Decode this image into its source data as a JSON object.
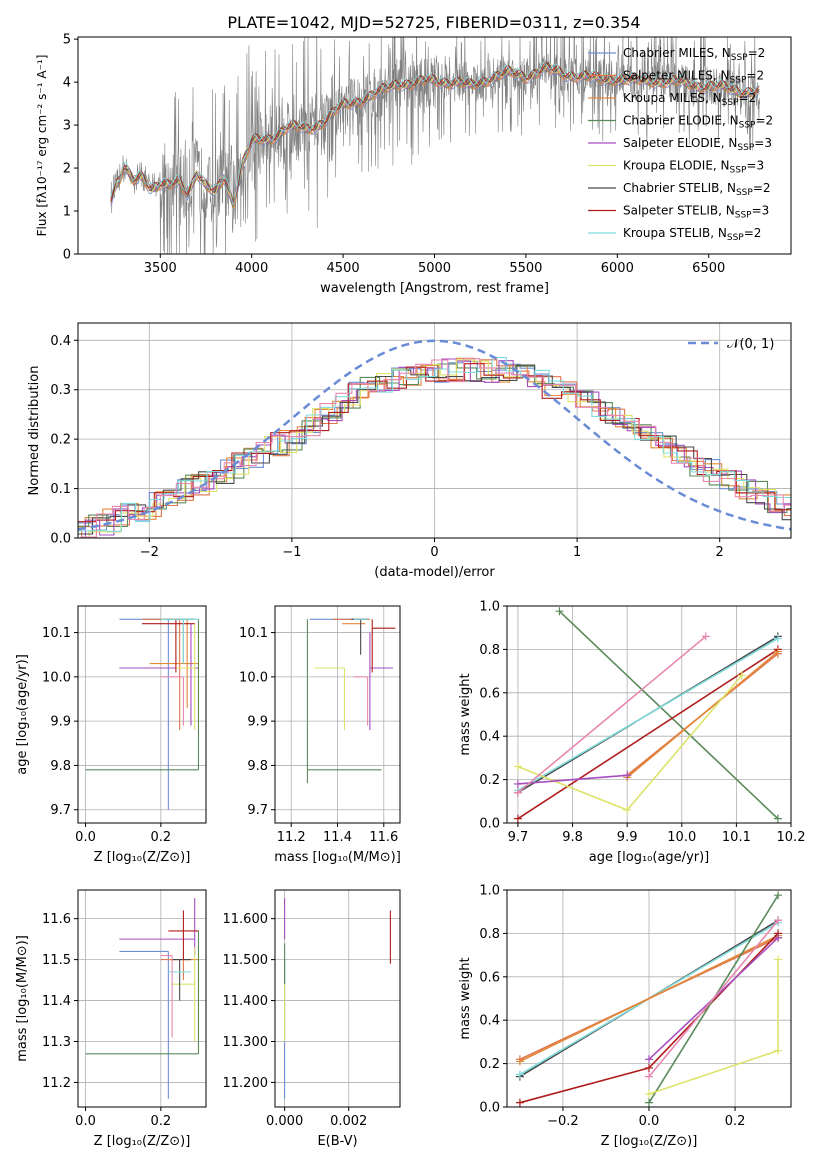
{
  "title": "PLATE=1042, MJD=52725, FIBERID=0311, z=0.354",
  "colors": {
    "chabrier_miles": "#6e8fd8",
    "salpeter_miles": "#e0764e",
    "kroupa_miles": "#e3883a",
    "chabrier_elodie": "#5a8a5a",
    "salpeter_elodie": "#a64ec0",
    "kroupa_elodie": "#dde36a",
    "chabrier_stelib": "#4a4a4a",
    "salpeter_stelib": "#b01c1c",
    "kroupa_stelib": "#7fdcdc",
    "pink": "#e888b0",
    "observed": "#808080",
    "normal_curve": "#6a8cd6"
  },
  "legend": [
    {
      "imf": "Chabrier MILES",
      "nssp": "=2",
      "key": "chabrier_miles"
    },
    {
      "imf": "Salpeter MILES",
      "nssp": "=2",
      "key": "salpeter_miles"
    },
    {
      "imf": "Kroupa MILES",
      "nssp": "=2",
      "key": "kroupa_miles"
    },
    {
      "imf": "Chabrier ELODIE",
      "nssp": "=2",
      "key": "chabrier_elodie"
    },
    {
      "imf": "Salpeter ELODIE",
      "nssp": "=3",
      "key": "salpeter_elodie"
    },
    {
      "imf": "Kroupa ELODIE",
      "nssp": "=3",
      "key": "kroupa_elodie"
    },
    {
      "imf": "Chabrier STELIB",
      "nssp": "=2",
      "key": "chabrier_stelib"
    },
    {
      "imf": "Salpeter STELIB",
      "nssp": "=3",
      "key": "salpeter_stelib"
    },
    {
      "imf": "Kroupa STELIB",
      "nssp": "=2",
      "key": "kroupa_stelib"
    }
  ],
  "nssp_prefix": "N",
  "nssp_sub": "SSP",
  "chart_data": [
    {
      "id": "spectrum",
      "type": "line",
      "xlabel": "wavelength [Angstrom, rest frame]",
      "ylabel": "Flux [fλ10⁻¹⁷ erg cm⁻² s⁻¹ A⁻¹]",
      "xlim": [
        3050,
        6950
      ],
      "ylim": [
        0,
        5.05
      ],
      "xticks": [
        3500,
        4000,
        4500,
        5000,
        5500,
        6000,
        6500
      ],
      "yticks": [
        0,
        1,
        2,
        3,
        4,
        5
      ],
      "model_continuum": {
        "x": [
          3230,
          3260,
          3280,
          3300,
          3350,
          3400,
          3450,
          3500,
          3550,
          3600,
          3650,
          3700,
          3750,
          3800,
          3850,
          3900,
          3950,
          4000,
          4100,
          4200,
          4300,
          4400,
          4500,
          4600,
          4700,
          4800,
          4900,
          5000,
          5100,
          5200,
          5300,
          5400,
          5500,
          5600,
          5700,
          5800,
          5900,
          6000,
          6100,
          6200,
          6300,
          6400,
          6500,
          6600,
          6700,
          6780
        ],
        "y": [
          1.3,
          1.6,
          1.7,
          2.0,
          1.7,
          1.85,
          1.55,
          1.6,
          1.55,
          1.7,
          1.45,
          1.9,
          1.55,
          1.4,
          1.8,
          1.2,
          2.1,
          2.6,
          2.7,
          2.95,
          2.9,
          3.1,
          3.45,
          3.6,
          3.75,
          4.0,
          3.95,
          4.05,
          4.0,
          3.9,
          4.1,
          4.2,
          4.15,
          4.3,
          4.2,
          4.15,
          4.05,
          4.1,
          4.0,
          4.05,
          4.0,
          3.95,
          3.9,
          3.85,
          3.8,
          3.75
        ]
      }
    },
    {
      "id": "residual_hist",
      "type": "line",
      "xlabel": "(data-model)/error",
      "ylabel": "Normed distribution",
      "xlim": [
        -2.5,
        2.5
      ],
      "ylim": [
        0,
        0.435
      ],
      "xticks": [
        -2,
        -1,
        0,
        1,
        2
      ],
      "yticks": [
        0.0,
        0.1,
        0.2,
        0.3,
        0.4
      ],
      "legend_label": "𝒩(0, 1)",
      "reference_curve": "normal(0,1)",
      "hist_envelope": {
        "x": [
          -2.5,
          -2.0,
          -1.5,
          -1.0,
          -0.5,
          0.0,
          0.5,
          1.0,
          1.5,
          2.0,
          2.5
        ],
        "y": [
          0.01,
          0.06,
          0.13,
          0.2,
          0.3,
          0.34,
          0.34,
          0.29,
          0.2,
          0.13,
          0.06
        ]
      }
    },
    {
      "id": "age_vs_z",
      "type": "scatter",
      "xlabel": "Z [log₁₀(Z/Z⊙)]",
      "ylabel": "age  [log₁₀(age/yr)]",
      "xlim": [
        -0.02,
        0.32
      ],
      "ylim": [
        9.67,
        10.16
      ],
      "xticks": [
        0.0,
        0.2
      ],
      "yticks": [
        9.7,
        9.8,
        9.9,
        10.0,
        10.1
      ],
      "errorbars": [
        {
          "key": "chabrier_miles",
          "x": 0.22,
          "y": 10.13,
          "xerr": [
            0.13,
            0.0
          ],
          "yerr": [
            0.43,
            0.0
          ]
        },
        {
          "key": "salpeter_miles",
          "x": 0.25,
          "y": 10.13,
          "xerr": [
            0.1,
            0.0
          ],
          "yerr": [
            0.25,
            0.0
          ]
        },
        {
          "key": "kroupa_miles",
          "x": 0.27,
          "y": 10.03,
          "xerr": [
            0.1,
            0.03
          ],
          "yerr": [
            0.1,
            0.1
          ]
        },
        {
          "key": "chabrier_elodie",
          "x": 0.3,
          "y": 9.79,
          "xerr": [
            0.3,
            0.0
          ],
          "yerr": [
            0.0,
            0.34
          ]
        },
        {
          "key": "salpeter_elodie",
          "x": 0.28,
          "y": 10.02,
          "xerr": [
            0.19,
            0.02
          ],
          "yerr": [
            0.13,
            0.1
          ]
        },
        {
          "key": "kroupa_elodie",
          "x": 0.29,
          "y": 10.02,
          "xerr": [
            0.05,
            0.0
          ],
          "yerr": [
            0.14,
            0.1
          ]
        },
        {
          "key": "chabrier_stelib",
          "x": 0.26,
          "y": 10.13,
          "xerr": [
            0.05,
            0.03
          ],
          "yerr": [
            0.1,
            0.0
          ]
        },
        {
          "key": "salpeter_stelib",
          "x": 0.24,
          "y": 10.12,
          "xerr": [
            0.09,
            0.05
          ],
          "yerr": [
            0.11,
            0.01
          ]
        },
        {
          "key": "kroupa_stelib",
          "x": 0.26,
          "y": 10.13,
          "xerr": [
            0.06,
            0.04
          ],
          "yerr": [
            0.1,
            0.0
          ]
        },
        {
          "key": "pink",
          "x": 0.26,
          "y": 10.0,
          "xerr": [
            0.06,
            0.0
          ],
          "yerr": [
            0.11,
            0.0
          ]
        }
      ]
    },
    {
      "id": "age_vs_mass",
      "type": "scatter",
      "xlabel": "mass [log₁₀(M/M⊙)]",
      "ylabel": "",
      "xlim": [
        11.13,
        11.67
      ],
      "ylim": [
        9.67,
        10.16
      ],
      "xticks": [
        11.2,
        11.4,
        11.6
      ],
      "yticks": [
        9.7,
        9.8,
        9.9,
        10.0,
        10.1
      ],
      "errorbars": [
        {
          "key": "chabrier_miles",
          "x": 11.52,
          "y": 10.13,
          "xerr": [
            0.24,
            0.0
          ],
          "yerr": [
            0.0,
            0.0
          ]
        },
        {
          "key": "salpeter_miles",
          "x": 11.5,
          "y": 10.13,
          "xerr": [
            0.12,
            0.04
          ],
          "yerr": [
            0.0,
            0.0
          ]
        },
        {
          "key": "kroupa_miles",
          "x": 11.52,
          "y": 10.12,
          "xerr": [
            0.1,
            0.0
          ],
          "yerr": [
            0.0,
            0.0
          ]
        },
        {
          "key": "chabrier_elodie",
          "x": 11.27,
          "y": 9.79,
          "xerr": [
            0.0,
            0.32
          ],
          "yerr": [
            0.03,
            0.34
          ]
        },
        {
          "key": "salpeter_elodie",
          "x": 11.54,
          "y": 10.02,
          "xerr": [
            0.0,
            0.1
          ],
          "yerr": [
            0.14,
            0.08
          ]
        },
        {
          "key": "kroupa_elodie",
          "x": 11.43,
          "y": 10.02,
          "xerr": [
            0.13,
            0.0
          ],
          "yerr": [
            0.14,
            0.0
          ]
        },
        {
          "key": "chabrier_stelib",
          "x": 11.5,
          "y": 10.13,
          "xerr": [
            0.04,
            0.03
          ],
          "yerr": [
            0.08,
            0.0
          ]
        },
        {
          "key": "salpeter_stelib",
          "x": 11.55,
          "y": 10.11,
          "xerr": [
            0.0,
            0.1
          ],
          "yerr": [
            0.1,
            0.02
          ]
        },
        {
          "key": "kroupa_stelib",
          "x": 11.5,
          "y": 10.13,
          "xerr": [
            0.03,
            0.03
          ],
          "yerr": [
            0.0,
            0.0
          ]
        },
        {
          "key": "pink",
          "x": 11.53,
          "y": 10.0,
          "xerr": [
            0.06,
            0.0
          ],
          "yerr": [
            0.11,
            0.0
          ]
        }
      ]
    },
    {
      "id": "weight_vs_age",
      "type": "line",
      "xlabel": "age  [log₁₀(age/yr)]",
      "ylabel": "mass weight",
      "xlim": [
        9.68,
        10.2
      ],
      "ylim": [
        0,
        1
      ],
      "xticks": [
        9.7,
        9.8,
        9.9,
        10.0,
        10.1,
        10.2
      ],
      "yticks": [
        0.0,
        0.2,
        0.4,
        0.6,
        0.8,
        1.0
      ],
      "series": [
        {
          "key": "chabrier_elodie",
          "x": [
            9.776,
            10.176
          ],
          "y": [
            0.976,
            0.02
          ]
        },
        {
          "key": "chabrier_stelib",
          "x": [
            9.7,
            10.176
          ],
          "y": [
            0.14,
            0.86
          ]
        },
        {
          "key": "kroupa_stelib",
          "x": [
            9.7,
            10.176
          ],
          "y": [
            0.15,
            0.85
          ]
        },
        {
          "key": "salpeter_stelib",
          "x": [
            9.7,
            10.176
          ],
          "y": [
            0.02,
            0.8
          ]
        },
        {
          "key": "salpeter_miles",
          "x": [
            9.9,
            10.176
          ],
          "y": [
            0.22,
            0.78
          ]
        },
        {
          "key": "kroupa_miles",
          "x": [
            9.9,
            10.176
          ],
          "y": [
            0.21,
            0.79
          ]
        },
        {
          "key": "kroupa_elodie",
          "x": [
            9.7,
            9.9,
            10.11
          ],
          "y": [
            0.26,
            0.06,
            0.68
          ]
        },
        {
          "key": "salpeter_elodie",
          "x": [
            9.7,
            9.9
          ],
          "y": [
            0.18,
            0.22
          ]
        },
        {
          "key": "pink",
          "x": [
            9.7,
            10.044
          ],
          "y": [
            0.14,
            0.86
          ]
        }
      ]
    },
    {
      "id": "mass_vs_z",
      "type": "scatter",
      "xlabel": "Z [log₁₀(Z/Z⊙)]",
      "ylabel": "mass [log₁₀(M/M⊙)]",
      "xlim": [
        -0.02,
        0.32
      ],
      "ylim": [
        11.14,
        11.67
      ],
      "xticks": [
        0.0,
        0.2
      ],
      "yticks": [
        11.2,
        11.3,
        11.4,
        11.5,
        11.6
      ],
      "errorbars": [
        {
          "key": "chabrier_miles",
          "x": 0.22,
          "y": 11.52,
          "xerr": [
            0.13,
            0.0
          ],
          "yerr": [
            0.36,
            0.0
          ]
        },
        {
          "key": "salpeter_miles",
          "x": 0.26,
          "y": 11.5,
          "xerr": [
            0.06,
            0.02
          ],
          "yerr": [
            0.05,
            0.0
          ]
        },
        {
          "key": "kroupa_miles",
          "x": 0.28,
          "y": 11.5,
          "xerr": [
            0.06,
            0.02
          ],
          "yerr": [
            0.0,
            0.0
          ]
        },
        {
          "key": "chabrier_elodie",
          "x": 0.3,
          "y": 11.27,
          "xerr": [
            0.3,
            0.0
          ],
          "yerr": [
            0.0,
            0.3
          ]
        },
        {
          "key": "salpeter_elodie",
          "x": 0.29,
          "y": 11.55,
          "xerr": [
            0.2,
            0.0
          ],
          "yerr": [
            0.04,
            0.1
          ]
        },
        {
          "key": "kroupa_elodie",
          "x": 0.29,
          "y": 11.44,
          "xerr": [
            0.06,
            0.0
          ],
          "yerr": [
            0.14,
            0.09
          ]
        },
        {
          "key": "chabrier_stelib",
          "x": 0.25,
          "y": 11.5,
          "xerr": [
            0.02,
            0.03
          ],
          "yerr": [
            0.1,
            0.0
          ]
        },
        {
          "key": "salpeter_stelib",
          "x": 0.26,
          "y": 11.57,
          "xerr": [
            0.04,
            0.04
          ],
          "yerr": [
            0.07,
            0.05
          ]
        },
        {
          "key": "kroupa_stelib",
          "x": 0.25,
          "y": 11.47,
          "xerr": [
            0.03,
            0.03
          ],
          "yerr": [
            0.0,
            0.0
          ]
        },
        {
          "key": "pink",
          "x": 0.23,
          "y": 11.51,
          "xerr": [
            0.03,
            0.0
          ],
          "yerr": [
            0.2,
            0.0
          ]
        }
      ]
    },
    {
      "id": "mass_vs_ebv",
      "type": "scatter",
      "xlabel": "E(B-V)",
      "ylabel": "",
      "xlim": [
        -0.0003,
        0.0036
      ],
      "ylim": [
        11.14,
        11.67
      ],
      "xticks": [
        0.0,
        0.002
      ],
      "yticks": [
        11.2,
        11.3,
        11.4,
        11.5,
        11.6
      ],
      "errorbars": [
        {
          "key": "chabrier_miles",
          "x": 0.0,
          "y": 11.5,
          "xerr": [
            0,
            0
          ],
          "yerr": [
            0.34,
            0.0
          ]
        },
        {
          "key": "salpeter_elodie",
          "x": 0.0,
          "y": 11.55,
          "xerr": [
            0,
            0
          ],
          "yerr": [
            0.0,
            0.1
          ]
        },
        {
          "key": "kroupa_elodie",
          "x": 0.0,
          "y": 11.44,
          "xerr": [
            0,
            0
          ],
          "yerr": [
            0.14,
            0.0
          ]
        },
        {
          "key": "chabrier_elodie",
          "x": 0.0,
          "y": 11.5,
          "xerr": [
            0,
            0
          ],
          "yerr": [
            0.06,
            0.04
          ]
        },
        {
          "key": "salpeter_stelib",
          "x": 0.0033,
          "y": 11.55,
          "xerr": [
            0,
            0
          ],
          "yerr": [
            0.06,
            0.07
          ]
        }
      ]
    },
    {
      "id": "weight_vs_z",
      "type": "line",
      "xlabel": "Z [log₁₀(Z/Z⊙)]",
      "ylabel": "mass weight",
      "xlim": [
        -0.33,
        0.33
      ],
      "ylim": [
        0,
        1
      ],
      "xticks": [
        -0.2,
        0.0,
        0.2
      ],
      "yticks": [
        0.0,
        0.2,
        0.4,
        0.6,
        0.8,
        1.0
      ],
      "series": [
        {
          "key": "chabrier_stelib",
          "x": [
            -0.3,
            0.3
          ],
          "y": [
            0.14,
            0.86
          ]
        },
        {
          "key": "kroupa_stelib",
          "x": [
            -0.3,
            0.3
          ],
          "y": [
            0.15,
            0.85
          ]
        },
        {
          "key": "salpeter_miles",
          "x": [
            -0.3,
            0.3
          ],
          "y": [
            0.22,
            0.78
          ]
        },
        {
          "key": "kroupa_miles",
          "x": [
            -0.3,
            0.3
          ],
          "y": [
            0.21,
            0.79
          ]
        },
        {
          "key": "salpeter_stelib",
          "x": [
            -0.3,
            0.0,
            0.3
          ],
          "y": [
            0.02,
            0.18,
            0.8
          ]
        },
        {
          "key": "chabrier_elodie",
          "x": [
            0.0,
            0.3
          ],
          "y": [
            0.02,
            0.976
          ]
        },
        {
          "key": "kroupa_elodie",
          "x": [
            0.0,
            0.3,
            0.3
          ],
          "y": [
            0.06,
            0.26,
            0.68
          ]
        },
        {
          "key": "salpeter_elodie",
          "x": [
            0.0,
            0.3
          ],
          "y": [
            0.22,
            0.78
          ]
        },
        {
          "key": "pink",
          "x": [
            0.0,
            0.3
          ],
          "y": [
            0.14,
            0.86
          ]
        }
      ]
    }
  ]
}
